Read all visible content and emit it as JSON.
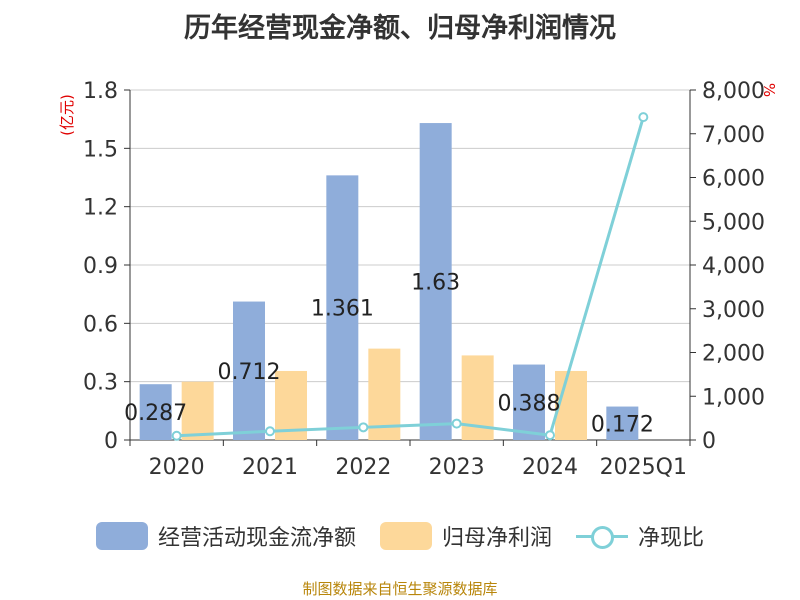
{
  "title": "历年经营现金净额、归母净利润情况",
  "footer": "制图数据来自恒生聚源数据库",
  "colors": {
    "cashflow": "#8fadda",
    "profit": "#fdd89a",
    "ratio": "#7fd0d8",
    "axis": "#333333",
    "grid": "#cccccc",
    "unit": "#e00000"
  },
  "chart_data": {
    "type": "bar",
    "categories": [
      "2020",
      "2021",
      "2022",
      "2023",
      "2024",
      "2025Q1"
    ],
    "series": [
      {
        "name": "经营活动现金流净额",
        "type": "bar",
        "axis": "left",
        "values": [
          0.287,
          0.712,
          1.361,
          1.63,
          0.388,
          0.172
        ],
        "labels": [
          "0.287",
          "0.712",
          "1.361",
          "1.63",
          "0.388",
          "0.172"
        ]
      },
      {
        "name": "归母净利润",
        "type": "bar",
        "axis": "left",
        "values": [
          0.3,
          0.355,
          0.47,
          0.435,
          0.355,
          null
        ]
      },
      {
        "name": "净现比",
        "type": "line",
        "axis": "right",
        "values": [
          96,
          200,
          290,
          375,
          110,
          7380
        ]
      }
    ],
    "left_axis": {
      "unit": "(亿元)",
      "min": 0,
      "max": 1.8,
      "ticks": [
        "0",
        "0.3",
        "0.6",
        "0.9",
        "1.2",
        "1.5",
        "1.8"
      ]
    },
    "right_axis": {
      "unit": "%",
      "min": 0,
      "max": 8000,
      "ticks": [
        "0",
        "1,000",
        "2,000",
        "3,000",
        "4,000",
        "5,000",
        "6,000",
        "7,000",
        "8,000"
      ]
    },
    "grid": true,
    "legend_position": "bottom"
  }
}
